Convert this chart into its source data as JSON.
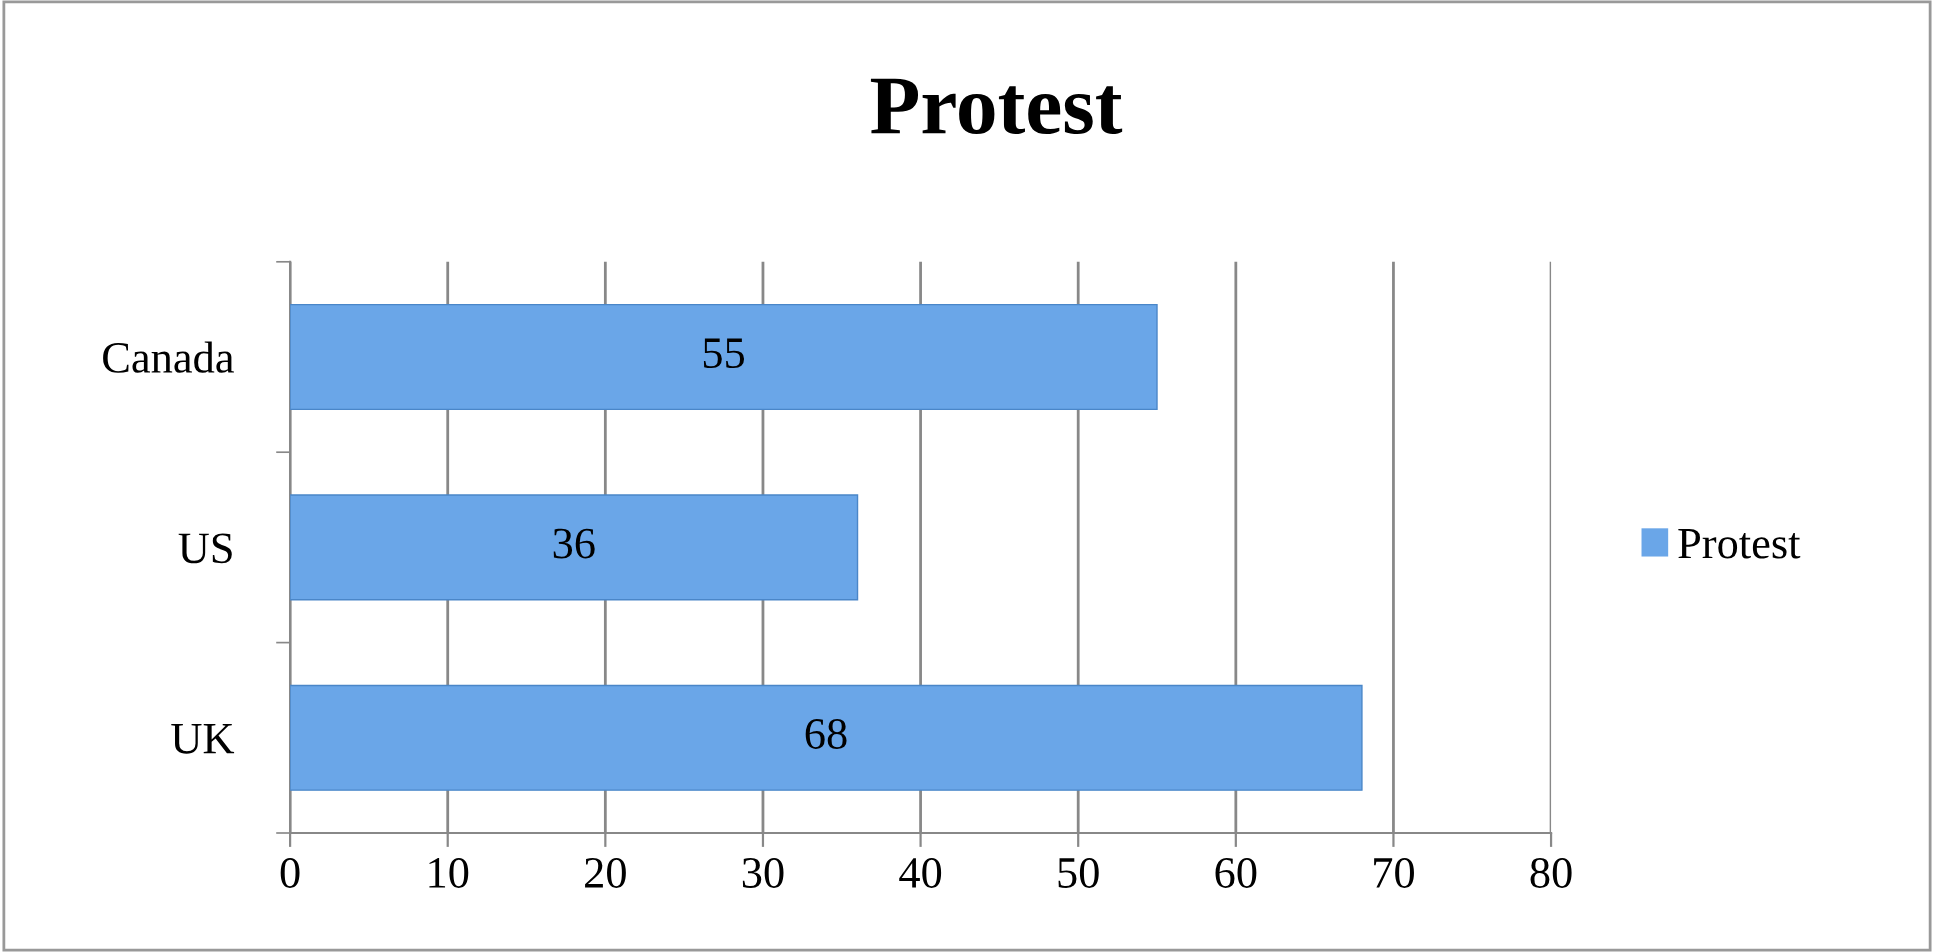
{
  "chart_data": {
    "type": "bar",
    "orientation": "horizontal",
    "title": "Protest",
    "categories": [
      "Canada",
      "US",
      "UK"
    ],
    "series": [
      {
        "name": "Protest",
        "color": "#6aa6e8",
        "values": [
          55,
          36,
          68
        ]
      }
    ],
    "xlim": [
      0,
      80
    ],
    "xticks": [
      0,
      10,
      20,
      30,
      40,
      50,
      60,
      70,
      80
    ],
    "grid": "x",
    "legend": "right",
    "data_labels": true
  }
}
